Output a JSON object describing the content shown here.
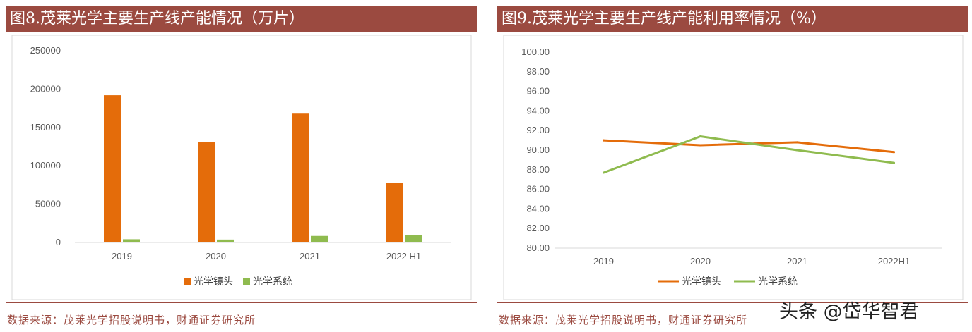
{
  "colors": {
    "title_bg": "#9b4a40",
    "source_text": "#9b4a40",
    "series_lens": "#e46c0a",
    "series_system": "#8fbb4f",
    "axis": "#d9d9d9",
    "tick_text": "#595959"
  },
  "left_panel": {
    "title": "图8.茂莱光学主要生产线产能情况（万片）",
    "source": "数据来源：茂莱光学招股说明书，财通证券研究所"
  },
  "right_panel": {
    "title": "图9.茂莱光学主要生产线产能利用率情况（%）",
    "source": "数据来源：茂莱光学招股说明书，财通证券研究所"
  },
  "watermark": "头条 @岱华智君",
  "chart_data": [
    {
      "type": "bar",
      "categories": [
        "2019",
        "2020",
        "2021",
        "2022 H1"
      ],
      "series": [
        {
          "name": "光学镜头",
          "values": [
            192000,
            131000,
            168000,
            77500
          ]
        },
        {
          "name": "光学系统",
          "values": [
            4200,
            3800,
            8500,
            10000
          ]
        }
      ],
      "ylim": [
        0,
        250000
      ],
      "yticks": [
        "0",
        "50000",
        "100000",
        "150000",
        "200000",
        "250000"
      ],
      "grid": false,
      "legend": "bottom"
    },
    {
      "type": "line",
      "categories": [
        "2019",
        "2020",
        "2021",
        "2022H1"
      ],
      "series": [
        {
          "name": "光学镜头",
          "values": [
            91.0,
            90.5,
            90.8,
            89.8
          ]
        },
        {
          "name": "光学系统",
          "values": [
            87.7,
            91.4,
            90.0,
            88.7
          ]
        }
      ],
      "ylim": [
        80,
        100
      ],
      "yticks": [
        "80.00",
        "82.00",
        "84.00",
        "86.00",
        "88.00",
        "90.00",
        "92.00",
        "94.00",
        "96.00",
        "98.00",
        "100.00"
      ],
      "grid": false,
      "legend": "bottom"
    }
  ]
}
